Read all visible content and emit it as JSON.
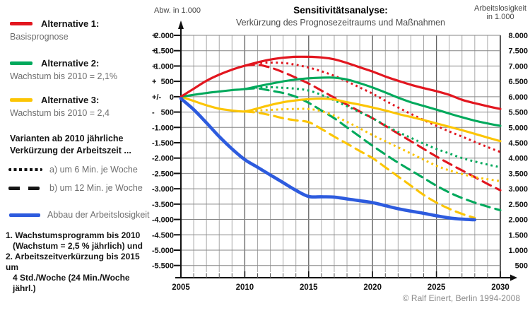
{
  "page": {
    "copyright": "© Ralf Einert, Berlin 1994-2008"
  },
  "legend": {
    "alt1": {
      "title": "Alternative 1:",
      "desc": "Basisprognose"
    },
    "alt2": {
      "title": "Alternative 2:",
      "desc": "Wachstum bis 2010 = 2,1%"
    },
    "alt3": {
      "title": "Alternative 3:",
      "desc": "Wachstum bis 2010 = 2,4"
    },
    "variants_note_line1": "Varianten ab 2010 jährliche",
    "variants_note_line2": "Verkürzung der Arbeitszeit ...",
    "variant_a": "a) um 6 Min. je Woche",
    "variant_b": "b) um 12 Min. je Woche",
    "blue_label": "Abbau der Arbeitslosigkeit",
    "footnote_line1": "1. Wachstumsprogramm bis 2010",
    "footnote_line2": "(Wachstum = 2,5 % jährlich) und",
    "footnote_line3": "2. Arbeitszeitverkürzung bis 2015 um",
    "footnote_line4": "4 Std./Woche (24 Min./Woche jährl.)"
  },
  "chart_data": {
    "type": "line",
    "title": "Sensitivitätsanalyse:",
    "subtitle": "Verkürzung des Prognosezeitraums und Maßnahmen",
    "left_axis_label": "Abw. in 1.000",
    "right_axis_label_line1": "Arbeitslosigkeit",
    "right_axis_label_line2": "in 1.000",
    "grid": true,
    "x_range": [
      2005,
      2030
    ],
    "x_ticks": [
      2005,
      2010,
      2015,
      2020,
      2025,
      2030
    ],
    "left_ylim": [
      -5500,
      2000
    ],
    "right_ylim": [
      500,
      8000
    ],
    "colors": {
      "red": "#e2161f",
      "green": "#00a95c",
      "yellow": "#fcc503",
      "blue": "#2d5bde",
      "grid_minor": "#a8a8a8",
      "grid_major": "#5f5f5f",
      "grid_h": "#868686",
      "axis": "#111111"
    },
    "left_ticks": [
      {
        "sign": "+",
        "label": "2.000",
        "value": 2000
      },
      {
        "sign": "+",
        "label": "1.500",
        "value": 1500
      },
      {
        "sign": "+",
        "label": "1.000",
        "value": 1000
      },
      {
        "sign": "+",
        "label": "500",
        "value": 500
      },
      {
        "sign": "+/-",
        "label": "0",
        "value": 0
      },
      {
        "sign": "-",
        "label": "500",
        "value": -500
      },
      {
        "sign": "-",
        "label": "1.000",
        "value": -1000
      },
      {
        "sign": "-",
        "label": "1.500",
        "value": -1500
      },
      {
        "sign": "-",
        "label": "2.000",
        "value": -2000
      },
      {
        "sign": "-",
        "label": "2.500",
        "value": -2500
      },
      {
        "sign": "-",
        "label": "3.000",
        "value": -3000
      },
      {
        "sign": "-",
        "label": "3.500",
        "value": -3500
      },
      {
        "sign": "-",
        "label": "4.000",
        "value": -4000
      },
      {
        "sign": "-",
        "label": "4.500",
        "value": -4500
      },
      {
        "sign": "-",
        "label": "5.000",
        "value": -5000
      },
      {
        "sign": "-",
        "label": "5.500",
        "value": -5500
      }
    ],
    "right_ticks": [
      {
        "label": "8.000",
        "value": 2000
      },
      {
        "label": "7.500",
        "value": 1500
      },
      {
        "label": "7.000",
        "value": 1000
      },
      {
        "label": "6.500",
        "value": 500
      },
      {
        "label": "6.000",
        "value": 0
      },
      {
        "label": "5.500",
        "value": -500
      },
      {
        "label": "5.000",
        "value": -1000
      },
      {
        "label": "4.500",
        "value": -1500
      },
      {
        "label": "4.000",
        "value": -2000
      },
      {
        "label": "3.500",
        "value": -2500
      },
      {
        "label": "3.000",
        "value": -3000
      },
      {
        "label": "2.500",
        "value": -3500
      },
      {
        "label": "2.000",
        "value": -4000
      },
      {
        "label": "1.500",
        "value": -4500
      },
      {
        "label": "1.000",
        "value": -5000
      },
      {
        "label": "500",
        "value": -5500
      }
    ],
    "series": [
      {
        "id": "alt3-b-12min",
        "name": "Alternative 3 b) um 12 Min. je Woche",
        "color": "#fcc503",
        "style": "dashed",
        "width": 3.1,
        "points": [
          [
            2010,
            -480
          ],
          [
            2011,
            -520
          ],
          [
            2012,
            -600
          ],
          [
            2013,
            -700
          ],
          [
            2014,
            -770
          ],
          [
            2015,
            -830
          ],
          [
            2016,
            -1050
          ],
          [
            2017,
            -1300
          ],
          [
            2018,
            -1530
          ],
          [
            2019,
            -1770
          ],
          [
            2020,
            -2000
          ],
          [
            2021,
            -2300
          ],
          [
            2022,
            -2600
          ],
          [
            2023,
            -2900
          ],
          [
            2024,
            -3200
          ],
          [
            2025,
            -3450
          ],
          [
            2026,
            -3650
          ],
          [
            2027,
            -3820
          ],
          [
            2028,
            -3950
          ]
        ]
      },
      {
        "id": "alt2-b-12min",
        "name": "Alternative 2 b) um 12 Min. je Woche",
        "color": "#00a95c",
        "style": "dashed",
        "width": 3.1,
        "points": [
          [
            2010,
            250
          ],
          [
            2011,
            270
          ],
          [
            2012,
            200
          ],
          [
            2013,
            120
          ],
          [
            2014,
            0
          ],
          [
            2015,
            -200
          ],
          [
            2016,
            -450
          ],
          [
            2017,
            -700
          ],
          [
            2018,
            -1000
          ],
          [
            2019,
            -1300
          ],
          [
            2020,
            -1600
          ],
          [
            2021,
            -1880
          ],
          [
            2022,
            -2150
          ],
          [
            2023,
            -2400
          ],
          [
            2024,
            -2650
          ],
          [
            2025,
            -2900
          ],
          [
            2026,
            -3120
          ],
          [
            2027,
            -3300
          ],
          [
            2028,
            -3450
          ],
          [
            2029,
            -3580
          ],
          [
            2030,
            -3700
          ]
        ]
      },
      {
        "id": "alt1-b-12min",
        "name": "Alternative 1 b) um 12 Min. je Woche",
        "color": "#e2161f",
        "style": "dashed",
        "width": 3.1,
        "points": [
          [
            2010,
            1010
          ],
          [
            2011,
            1040
          ],
          [
            2012,
            950
          ],
          [
            2013,
            800
          ],
          [
            2014,
            620
          ],
          [
            2015,
            430
          ],
          [
            2016,
            200
          ],
          [
            2017,
            -30
          ],
          [
            2018,
            -260
          ],
          [
            2019,
            -480
          ],
          [
            2020,
            -700
          ],
          [
            2021,
            -950
          ],
          [
            2022,
            -1200
          ],
          [
            2023,
            -1450
          ],
          [
            2024,
            -1700
          ],
          [
            2025,
            -1950
          ],
          [
            2026,
            -2180
          ],
          [
            2027,
            -2400
          ],
          [
            2028,
            -2620
          ],
          [
            2029,
            -2840
          ],
          [
            2030,
            -3050
          ]
        ]
      },
      {
        "id": "alt3-a-6min",
        "name": "Alternative 3 a) um 6 Min. je Woche",
        "color": "#fcc503",
        "style": "dotted",
        "width": 3,
        "points": [
          [
            2010,
            -480
          ],
          [
            2011,
            -450
          ],
          [
            2012,
            -430
          ],
          [
            2013,
            -410
          ],
          [
            2014,
            -400
          ],
          [
            2015,
            -400
          ],
          [
            2016,
            -470
          ],
          [
            2017,
            -620
          ],
          [
            2018,
            -820
          ],
          [
            2019,
            -1030
          ],
          [
            2020,
            -1250
          ],
          [
            2021,
            -1450
          ],
          [
            2022,
            -1650
          ],
          [
            2023,
            -1850
          ],
          [
            2024,
            -2050
          ],
          [
            2025,
            -2250
          ],
          [
            2026,
            -2400
          ],
          [
            2027,
            -2520
          ],
          [
            2028,
            -2620
          ],
          [
            2029,
            -2690
          ],
          [
            2030,
            -2750
          ]
        ]
      },
      {
        "id": "alt2-a-6min",
        "name": "Alternative 2 a) um 6 Min. je Woche",
        "color": "#00a95c",
        "style": "dotted",
        "width": 3,
        "points": [
          [
            2010,
            250
          ],
          [
            2011,
            300
          ],
          [
            2012,
            310
          ],
          [
            2013,
            290
          ],
          [
            2014,
            260
          ],
          [
            2015,
            200
          ],
          [
            2016,
            60
          ],
          [
            2017,
            -120
          ],
          [
            2018,
            -310
          ],
          [
            2019,
            -500
          ],
          [
            2020,
            -700
          ],
          [
            2021,
            -930
          ],
          [
            2022,
            -1150
          ],
          [
            2023,
            -1340
          ],
          [
            2024,
            -1530
          ],
          [
            2025,
            -1700
          ],
          [
            2026,
            -1850
          ],
          [
            2027,
            -2000
          ],
          [
            2028,
            -2110
          ],
          [
            2029,
            -2210
          ],
          [
            2030,
            -2300
          ]
        ]
      },
      {
        "id": "alt1-a-6min",
        "name": "Alternative 1 a) um 6 Min. je Woche",
        "color": "#e2161f",
        "style": "dotted",
        "width": 3,
        "points": [
          [
            2010,
            1010
          ],
          [
            2011,
            1090
          ],
          [
            2012,
            1110
          ],
          [
            2013,
            1100
          ],
          [
            2014,
            1040
          ],
          [
            2015,
            950
          ],
          [
            2016,
            830
          ],
          [
            2017,
            680
          ],
          [
            2018,
            500
          ],
          [
            2019,
            300
          ],
          [
            2020,
            100
          ],
          [
            2021,
            -130
          ],
          [
            2022,
            -350
          ],
          [
            2023,
            -560
          ],
          [
            2024,
            -760
          ],
          [
            2025,
            -950
          ],
          [
            2026,
            -1130
          ],
          [
            2027,
            -1300
          ],
          [
            2028,
            -1470
          ],
          [
            2029,
            -1640
          ],
          [
            2030,
            -1800
          ]
        ]
      },
      {
        "id": "alt3-basis",
        "name": "Alternative 3: Wachstum bis 2010 = 2,4",
        "color": "#fcc503",
        "style": "solid",
        "width": 3.1,
        "points": [
          [
            2005,
            0
          ],
          [
            2006,
            -140
          ],
          [
            2007,
            -280
          ],
          [
            2008,
            -390
          ],
          [
            2009,
            -450
          ],
          [
            2010,
            -480
          ],
          [
            2011,
            -380
          ],
          [
            2012,
            -270
          ],
          [
            2013,
            -180
          ],
          [
            2014,
            -120
          ],
          [
            2015,
            -80
          ],
          [
            2016,
            -60
          ],
          [
            2017,
            -90
          ],
          [
            2018,
            -180
          ],
          [
            2019,
            -260
          ],
          [
            2020,
            -350
          ],
          [
            2021,
            -450
          ],
          [
            2022,
            -560
          ],
          [
            2023,
            -660
          ],
          [
            2024,
            -760
          ],
          [
            2025,
            -870
          ],
          [
            2026,
            -980
          ],
          [
            2027,
            -1090
          ],
          [
            2028,
            -1210
          ],
          [
            2029,
            -1330
          ],
          [
            2030,
            -1450
          ]
        ]
      },
      {
        "id": "alt2-basis",
        "name": "Alternative 2: Wachstum bis 2010 = 2,1%",
        "color": "#00a95c",
        "style": "solid",
        "width": 3.1,
        "points": [
          [
            2005,
            0
          ],
          [
            2006,
            60
          ],
          [
            2007,
            120
          ],
          [
            2008,
            170
          ],
          [
            2009,
            215
          ],
          [
            2010,
            250
          ],
          [
            2011,
            340
          ],
          [
            2012,
            420
          ],
          [
            2013,
            500
          ],
          [
            2014,
            560
          ],
          [
            2015,
            600
          ],
          [
            2016,
            620
          ],
          [
            2017,
            620
          ],
          [
            2018,
            560
          ],
          [
            2019,
            440
          ],
          [
            2020,
            300
          ],
          [
            2021,
            140
          ],
          [
            2022,
            -30
          ],
          [
            2023,
            -180
          ],
          [
            2024,
            -300
          ],
          [
            2025,
            -420
          ],
          [
            2026,
            -550
          ],
          [
            2027,
            -670
          ],
          [
            2028,
            -780
          ],
          [
            2029,
            -870
          ],
          [
            2030,
            -950
          ]
        ]
      },
      {
        "id": "alt1-basis",
        "name": "Alternative 1: Basisprognose",
        "color": "#e2161f",
        "style": "solid",
        "width": 3.2,
        "points": [
          [
            2005,
            0
          ],
          [
            2006,
            260
          ],
          [
            2007,
            520
          ],
          [
            2008,
            720
          ],
          [
            2009,
            880
          ],
          [
            2010,
            1010
          ],
          [
            2011,
            1120
          ],
          [
            2012,
            1210
          ],
          [
            2013,
            1270
          ],
          [
            2014,
            1300
          ],
          [
            2015,
            1300
          ],
          [
            2016,
            1280
          ],
          [
            2017,
            1220
          ],
          [
            2018,
            1100
          ],
          [
            2019,
            960
          ],
          [
            2020,
            820
          ],
          [
            2021,
            660
          ],
          [
            2022,
            520
          ],
          [
            2023,
            390
          ],
          [
            2024,
            280
          ],
          [
            2025,
            180
          ],
          [
            2026,
            60
          ],
          [
            2027,
            -100
          ],
          [
            2028,
            -210
          ],
          [
            2029,
            -310
          ],
          [
            2030,
            -400
          ]
        ]
      },
      {
        "id": "abbau-arbeitslosigkeit",
        "name": "Abbau der Arbeitslosigkeit",
        "color": "#2d5bde",
        "style": "solid",
        "width": 4.6,
        "points": [
          [
            2005,
            -60
          ],
          [
            2006,
            -420
          ],
          [
            2007,
            -850
          ],
          [
            2008,
            -1300
          ],
          [
            2009,
            -1700
          ],
          [
            2010,
            -2050
          ],
          [
            2011,
            -2300
          ],
          [
            2012,
            -2550
          ],
          [
            2013,
            -2800
          ],
          [
            2014,
            -3050
          ],
          [
            2015,
            -3250
          ],
          [
            2016,
            -3260
          ],
          [
            2017,
            -3270
          ],
          [
            2018,
            -3330
          ],
          [
            2019,
            -3390
          ],
          [
            2020,
            -3450
          ],
          [
            2021,
            -3550
          ],
          [
            2022,
            -3650
          ],
          [
            2023,
            -3730
          ],
          [
            2024,
            -3800
          ],
          [
            2025,
            -3880
          ],
          [
            2026,
            -3950
          ],
          [
            2027,
            -3990
          ],
          [
            2028,
            -4010
          ]
        ]
      }
    ]
  }
}
